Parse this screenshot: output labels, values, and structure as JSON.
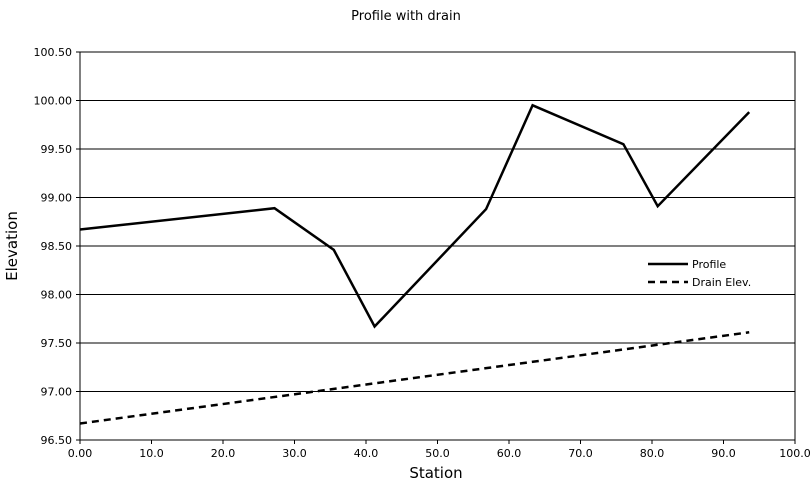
{
  "chart_data": {
    "type": "line",
    "title": "Profile with drain",
    "xlabel": "Station",
    "ylabel": "Elevation",
    "xlim": [
      0,
      100
    ],
    "ylim": [
      96.5,
      100.5
    ],
    "x_ticks": [
      "0.00",
      "10.0",
      "20.0",
      "30.0",
      "40.0",
      "50.0",
      "60.0",
      "70.0",
      "80.0",
      "90.0",
      "100.0"
    ],
    "y_ticks": [
      "96.50",
      "97.00",
      "97.50",
      "98.00",
      "98.50",
      "99.00",
      "99.50",
      "100.00",
      "100.50"
    ],
    "grid": "horizontal",
    "legend_position": "right",
    "series": [
      {
        "name": "Profile",
        "style": "solid",
        "color": "#000000",
        "x": [
          0,
          27.2,
          35.5,
          41.2,
          56.8,
          63.3,
          76.0,
          80.8,
          93.6
        ],
        "y": [
          98.67,
          98.89,
          98.46,
          97.67,
          98.88,
          99.95,
          99.55,
          98.91,
          99.88
        ]
      },
      {
        "name": "Drain Elev.",
        "style": "dashed",
        "color": "#000000",
        "x": [
          0,
          93.6
        ],
        "y": [
          96.67,
          97.61
        ]
      }
    ]
  }
}
